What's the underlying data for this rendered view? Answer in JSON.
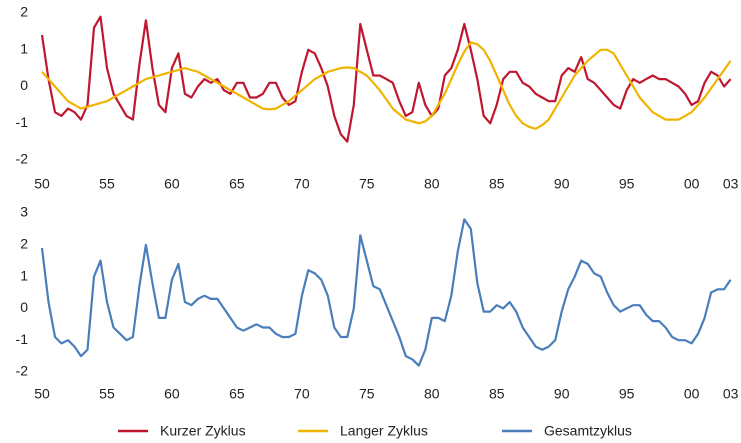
{
  "chart_data": [
    {
      "type": "line",
      "x": [
        1950,
        1950.5,
        1951,
        1951.5,
        1952,
        1952.5,
        1953,
        1953.5,
        1954,
        1954.5,
        1955,
        1955.5,
        1956,
        1956.5,
        1957,
        1957.5,
        1958,
        1958.5,
        1959,
        1959.5,
        1960,
        1960.5,
        1961,
        1961.5,
        1962,
        1962.5,
        1963,
        1963.5,
        1964,
        1964.5,
        1965,
        1965.5,
        1966,
        1966.5,
        1967,
        1967.5,
        1968,
        1968.5,
        1969,
        1969.5,
        1970,
        1970.5,
        1971,
        1971.5,
        1972,
        1972.5,
        1973,
        1973.5,
        1974,
        1974.5,
        1975,
        1975.5,
        1976,
        1976.5,
        1977,
        1977.5,
        1978,
        1978.5,
        1979,
        1979.5,
        1980,
        1980.5,
        1981,
        1981.5,
        1982,
        1982.5,
        1983,
        1983.5,
        1984,
        1984.5,
        1985,
        1985.5,
        1986,
        1986.5,
        1987,
        1987.5,
        1988,
        1988.5,
        1989,
        1989.5,
        1990,
        1990.5,
        1991,
        1991.5,
        1992,
        1992.5,
        1993,
        1993.5,
        1994,
        1994.5,
        1995,
        1995.5,
        1996,
        1996.5,
        1997,
        1997.5,
        1998,
        1998.5,
        1999,
        1999.5,
        2000,
        2000.5,
        2001,
        2001.5,
        2002,
        2002.5,
        2003
      ],
      "series": [
        {
          "name": "Kurzer Zyklus",
          "color": "#c0162f",
          "values": [
            1.4,
            0.2,
            -0.7,
            -0.8,
            -0.6,
            -0.7,
            -0.9,
            -0.5,
            1.6,
            1.9,
            0.5,
            -0.2,
            -0.5,
            -0.8,
            -0.9,
            0.6,
            1.8,
            0.5,
            -0.5,
            -0.7,
            0.5,
            0.9,
            -0.2,
            -0.3,
            0.0,
            0.2,
            0.1,
            0.2,
            -0.1,
            -0.2,
            0.1,
            0.1,
            -0.3,
            -0.3,
            -0.2,
            0.1,
            0.1,
            -0.3,
            -0.5,
            -0.4,
            0.4,
            1.0,
            0.9,
            0.5,
            0.0,
            -0.8,
            -1.3,
            -1.5,
            -0.5,
            1.7,
            1.0,
            0.3,
            0.3,
            0.2,
            0.1,
            -0.4,
            -0.8,
            -0.7,
            0.1,
            -0.5,
            -0.8,
            -0.6,
            0.3,
            0.5,
            1.0,
            1.7,
            1.0,
            0.2,
            -0.8,
            -1.0,
            -0.5,
            0.2,
            0.4,
            0.4,
            0.1,
            0.0,
            -0.2,
            -0.3,
            -0.4,
            -0.4,
            0.3,
            0.5,
            0.4,
            0.8,
            0.2,
            0.1,
            -0.1,
            -0.3,
            -0.5,
            -0.6,
            -0.1,
            0.2,
            0.1,
            0.2,
            0.3,
            0.2,
            0.2,
            0.1,
            0.0,
            -0.2,
            -0.5,
            -0.4,
            0.1,
            0.4,
            0.3,
            0.0,
            0.2
          ]
        },
        {
          "name": "Langer Zyklus",
          "color": "#f0b400",
          "values": [
            0.4,
            0.2,
            0.0,
            -0.2,
            -0.4,
            -0.5,
            -0.6,
            -0.55,
            -0.5,
            -0.45,
            -0.4,
            -0.3,
            -0.2,
            -0.1,
            0.0,
            0.1,
            0.2,
            0.25,
            0.3,
            0.35,
            0.4,
            0.45,
            0.5,
            0.45,
            0.4,
            0.3,
            0.2,
            0.1,
            0.0,
            -0.1,
            -0.2,
            -0.3,
            -0.4,
            -0.5,
            -0.6,
            -0.62,
            -0.6,
            -0.5,
            -0.4,
            -0.25,
            -0.1,
            0.05,
            0.2,
            0.3,
            0.4,
            0.45,
            0.5,
            0.52,
            0.5,
            0.4,
            0.3,
            0.1,
            -0.1,
            -0.35,
            -0.6,
            -0.75,
            -0.9,
            -0.95,
            -1.0,
            -0.95,
            -0.8,
            -0.5,
            -0.2,
            0.2,
            0.6,
            0.95,
            1.2,
            1.15,
            1.0,
            0.7,
            0.3,
            -0.1,
            -0.5,
            -0.8,
            -1.0,
            -1.1,
            -1.15,
            -1.05,
            -0.9,
            -0.6,
            -0.3,
            0.0,
            0.3,
            0.5,
            0.7,
            0.85,
            1.0,
            1.0,
            0.9,
            0.6,
            0.3,
            0.0,
            -0.3,
            -0.5,
            -0.7,
            -0.8,
            -0.9,
            -0.9,
            -0.9,
            -0.8,
            -0.7,
            -0.5,
            -0.3,
            -0.05,
            0.2,
            0.45,
            0.7
          ]
        }
      ],
      "xlim": [
        1950,
        2003.8
      ],
      "xticks": [
        {
          "value": 1950,
          "label": "50"
        },
        {
          "value": 1955,
          "label": "55"
        },
        {
          "value": 1960,
          "label": "60"
        },
        {
          "value": 1965,
          "label": "65"
        },
        {
          "value": 1970,
          "label": "70"
        },
        {
          "value": 1975,
          "label": "75"
        },
        {
          "value": 1980,
          "label": "80"
        },
        {
          "value": 1985,
          "label": "85"
        },
        {
          "value": 1990,
          "label": "90"
        },
        {
          "value": 1995,
          "label": "95"
        },
        {
          "value": 2000,
          "label": "00"
        },
        {
          "value": 2003,
          "label": "03"
        }
      ],
      "ylim": [
        -2,
        2
      ],
      "yticks": [
        -2,
        -1,
        0,
        1,
        2
      ]
    },
    {
      "type": "line",
      "x": [
        1950,
        1950.5,
        1951,
        1951.5,
        1952,
        1952.5,
        1953,
        1953.5,
        1954,
        1954.5,
        1955,
        1955.5,
        1956,
        1956.5,
        1957,
        1957.5,
        1958,
        1958.5,
        1959,
        1959.5,
        1960,
        1960.5,
        1961,
        1961.5,
        1962,
        1962.5,
        1963,
        1963.5,
        1964,
        1964.5,
        1965,
        1965.5,
        1966,
        1966.5,
        1967,
        1967.5,
        1968,
        1968.5,
        1969,
        1969.5,
        1970,
        1970.5,
        1971,
        1971.5,
        1972,
        1972.5,
        1973,
        1973.5,
        1974,
        1974.5,
        1975,
        1975.5,
        1976,
        1976.5,
        1977,
        1977.5,
        1978,
        1978.5,
        1979,
        1979.5,
        1980,
        1980.5,
        1981,
        1981.5,
        1982,
        1982.5,
        1983,
        1983.5,
        1984,
        1984.5,
        1985,
        1985.5,
        1986,
        1986.5,
        1987,
        1987.5,
        1988,
        1988.5,
        1989,
        1989.5,
        1990,
        1990.5,
        1991,
        1991.5,
        1992,
        1992.5,
        1993,
        1993.5,
        1994,
        1994.5,
        1995,
        1995.5,
        1996,
        1996.5,
        1997,
        1997.5,
        1998,
        1998.5,
        1999,
        1999.5,
        2000,
        2000.5,
        2001,
        2001.5,
        2002,
        2002.5,
        2003
      ],
      "series": [
        {
          "name": "Gesamtzyklus",
          "color": "#4a7ebb",
          "values": [
            1.9,
            0.2,
            -0.9,
            -1.1,
            -1.0,
            -1.2,
            -1.5,
            -1.3,
            1.0,
            1.5,
            0.2,
            -0.6,
            -0.8,
            -1.0,
            -0.9,
            0.7,
            2.0,
            0.8,
            -0.3,
            -0.3,
            0.9,
            1.4,
            0.2,
            0.1,
            0.3,
            0.4,
            0.3,
            0.3,
            0.0,
            -0.3,
            -0.6,
            -0.7,
            -0.6,
            -0.5,
            -0.6,
            -0.6,
            -0.8,
            -0.9,
            -0.9,
            -0.8,
            0.4,
            1.2,
            1.1,
            0.9,
            0.4,
            -0.6,
            -0.9,
            -0.9,
            0.0,
            2.3,
            1.5,
            0.7,
            0.6,
            0.1,
            -0.4,
            -0.9,
            -1.5,
            -1.6,
            -1.8,
            -1.3,
            -0.3,
            -0.3,
            -0.4,
            0.4,
            1.8,
            2.8,
            2.5,
            0.8,
            -0.1,
            -0.1,
            0.1,
            0.0,
            0.2,
            -0.1,
            -0.6,
            -0.9,
            -1.2,
            -1.3,
            -1.2,
            -1.0,
            -0.1,
            0.6,
            1.0,
            1.5,
            1.4,
            1.1,
            1.0,
            0.5,
            0.1,
            -0.1,
            0.0,
            0.1,
            0.1,
            -0.2,
            -0.4,
            -0.4,
            -0.6,
            -0.9,
            -1.0,
            -1.0,
            -1.1,
            -0.8,
            -0.3,
            0.5,
            0.6,
            0.6,
            0.9
          ]
        }
      ],
      "xlim": [
        1950,
        2003.8
      ],
      "xticks": [
        {
          "value": 1950,
          "label": "50"
        },
        {
          "value": 1955,
          "label": "55"
        },
        {
          "value": 1960,
          "label": "60"
        },
        {
          "value": 1965,
          "label": "65"
        },
        {
          "value": 1970,
          "label": "70"
        },
        {
          "value": 1975,
          "label": "75"
        },
        {
          "value": 1980,
          "label": "80"
        },
        {
          "value": 1985,
          "label": "85"
        },
        {
          "value": 1990,
          "label": "90"
        },
        {
          "value": 1995,
          "label": "95"
        },
        {
          "value": 2000,
          "label": "00"
        },
        {
          "value": 2003,
          "label": "03"
        }
      ],
      "ylim": [
        -2,
        3
      ],
      "yticks": [
        -2,
        -1,
        0,
        1,
        2,
        3
      ]
    }
  ]
}
